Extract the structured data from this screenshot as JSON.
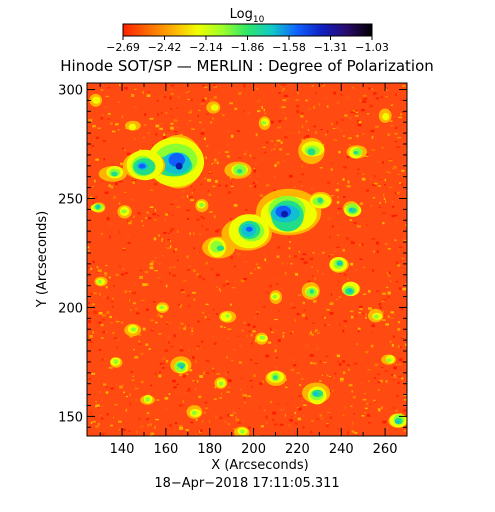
{
  "chart_data": {
    "type": "heatmap",
    "title": "Hinode SOT/SP — MERLIN : Degree of Polarization",
    "xlabel": "X (Arcseconds)",
    "ylabel": "Y (Arcseconds)",
    "xlim": [
      124,
      270
    ],
    "ylim": [
      141,
      303
    ],
    "x_ticks": [
      "140",
      "160",
      "180",
      "200",
      "220",
      "240",
      "260"
    ],
    "y_ticks": [
      "150",
      "200",
      "250",
      "300"
    ],
    "colorbar": {
      "label_main": "Log",
      "label_sub": "10",
      "ticks": [
        "−2.69",
        "−2.42",
        "−2.14",
        "−1.86",
        "−1.58",
        "−1.31",
        "−1.03"
      ],
      "range": [
        -2.69,
        -1.03
      ],
      "colors": [
        "#ff2200",
        "#ff6a00",
        "#ffb000",
        "#f0ff00",
        "#9cff2a",
        "#2ee66a",
        "#10c8c8",
        "#1060ff",
        "#1020c0",
        "#2a0a6a",
        "#000000"
      ]
    },
    "grid": false,
    "background_color": "#ff4a12",
    "blobs": [
      {
        "x": 165,
        "y": 266,
        "r": 12,
        "level": 1.0
      },
      {
        "x": 150,
        "y": 265,
        "r": 8,
        "level": 0.85
      },
      {
        "x": 136,
        "y": 262,
        "r": 5,
        "level": 0.55
      },
      {
        "x": 193,
        "y": 263,
        "r": 5,
        "level": 0.5
      },
      {
        "x": 215,
        "y": 243,
        "r": 12,
        "level": 1.0
      },
      {
        "x": 198,
        "y": 235,
        "r": 9,
        "level": 0.8
      },
      {
        "x": 184,
        "y": 227,
        "r": 6,
        "level": 0.6
      },
      {
        "x": 230,
        "y": 249,
        "r": 5,
        "level": 0.6
      },
      {
        "x": 227,
        "y": 272,
        "r": 6,
        "level": 0.5
      },
      {
        "x": 247,
        "y": 271,
        "r": 4,
        "level": 0.6
      },
      {
        "x": 245,
        "y": 245,
        "r": 4,
        "level": 0.65
      },
      {
        "x": 239,
        "y": 220,
        "r": 4,
        "level": 0.7
      },
      {
        "x": 244,
        "y": 208,
        "r": 4,
        "level": 0.65
      },
      {
        "x": 226,
        "y": 207,
        "r": 4,
        "level": 0.5
      },
      {
        "x": 210,
        "y": 205,
        "r": 3,
        "level": 0.45
      },
      {
        "x": 129,
        "y": 246,
        "r": 3,
        "level": 0.7
      },
      {
        "x": 141,
        "y": 244,
        "r": 3,
        "level": 0.4
      },
      {
        "x": 167,
        "y": 173,
        "r": 4,
        "level": 0.65
      },
      {
        "x": 137,
        "y": 175,
        "r": 3,
        "level": 0.4
      },
      {
        "x": 229,
        "y": 160,
        "r": 5,
        "level": 0.7
      },
      {
        "x": 210,
        "y": 168,
        "r": 4,
        "level": 0.5
      },
      {
        "x": 185,
        "y": 165,
        "r": 3,
        "level": 0.4
      },
      {
        "x": 266,
        "y": 148,
        "r": 4,
        "level": 0.7
      },
      {
        "x": 195,
        "y": 143,
        "r": 3,
        "level": 0.45
      },
      {
        "x": 173,
        "y": 152,
        "r": 3,
        "level": 0.4
      },
      {
        "x": 152,
        "y": 158,
        "r": 3,
        "level": 0.4
      },
      {
        "x": 145,
        "y": 190,
        "r": 3,
        "level": 0.4
      },
      {
        "x": 158,
        "y": 200,
        "r": 3,
        "level": 0.45
      },
      {
        "x": 188,
        "y": 196,
        "r": 3,
        "level": 0.4
      },
      {
        "x": 204,
        "y": 186,
        "r": 3,
        "level": 0.4
      },
      {
        "x": 256,
        "y": 196,
        "r": 3,
        "level": 0.45
      },
      {
        "x": 262,
        "y": 176,
        "r": 3,
        "level": 0.4
      },
      {
        "x": 130,
        "y": 212,
        "r": 3,
        "level": 0.4
      },
      {
        "x": 176,
        "y": 247,
        "r": 3,
        "level": 0.45
      },
      {
        "x": 205,
        "y": 285,
        "r": 3,
        "level": 0.4
      },
      {
        "x": 182,
        "y": 292,
        "r": 3,
        "level": 0.35
      },
      {
        "x": 145,
        "y": 283,
        "r": 3,
        "level": 0.35
      },
      {
        "x": 260,
        "y": 288,
        "r": 3,
        "level": 0.35
      },
      {
        "x": 128,
        "y": 295,
        "r": 3,
        "level": 0.35
      }
    ]
  },
  "footer": {
    "timestamp": "18−Apr−2018  17:11:05.311"
  }
}
